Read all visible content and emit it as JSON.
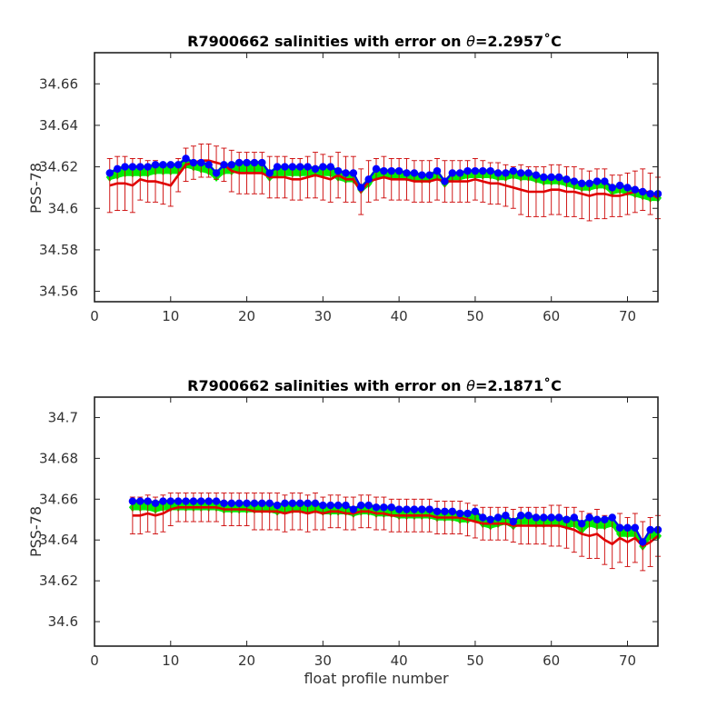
{
  "chart_data": [
    {
      "type": "line",
      "title": "R7900662 salinities with error on θ=2.2957˚C",
      "title_parts": {
        "prefix": "R7900662 salinities with error on ",
        "symbol": "θ",
        "suffix": "=2.2957˚C"
      },
      "xlabel": "",
      "ylabel": "PSS-78",
      "xlim": [
        0,
        74
      ],
      "ylim": [
        34.555,
        34.675
      ],
      "xticks": [
        0,
        10,
        20,
        30,
        40,
        50,
        60,
        70
      ],
      "xtick_labels": [
        "0",
        "10",
        "20",
        "30",
        "40",
        "50",
        "60",
        "70"
      ],
      "yticks": [
        34.56,
        34.58,
        34.6,
        34.62,
        34.64,
        34.66
      ],
      "ytick_labels": [
        "34.56",
        "34.58",
        "34.6",
        "34.62",
        "34.64",
        "34.66"
      ],
      "grid": false,
      "legend": "none",
      "colors": {
        "blue": "#0000ff",
        "red": "#e00000",
        "green": "#00ee00",
        "errorbar": "#cc0000"
      },
      "x": [
        2,
        3,
        4,
        5,
        6,
        7,
        8,
        9,
        10,
        11,
        12,
        13,
        14,
        15,
        16,
        17,
        18,
        19,
        20,
        21,
        22,
        23,
        24,
        25,
        26,
        27,
        28,
        29,
        30,
        31,
        32,
        33,
        34,
        35,
        36,
        37,
        38,
        39,
        40,
        41,
        42,
        43,
        44,
        45,
        46,
        47,
        48,
        49,
        50,
        51,
        52,
        53,
        54,
        55,
        56,
        57,
        58,
        59,
        60,
        61,
        62,
        63,
        64,
        65,
        66,
        67,
        68,
        69,
        70,
        71,
        72,
        73,
        74
      ],
      "series": [
        {
          "role": "float salinity (blue markers)",
          "values": [
            34.617,
            34.619,
            34.62,
            34.62,
            34.62,
            34.62,
            34.621,
            34.621,
            34.621,
            34.621,
            34.624,
            34.622,
            34.622,
            34.621,
            34.617,
            34.621,
            34.621,
            34.622,
            34.622,
            34.622,
            34.622,
            34.617,
            34.62,
            34.62,
            34.62,
            34.62,
            34.62,
            34.619,
            34.62,
            34.62,
            34.618,
            34.617,
            34.617,
            34.61,
            34.614,
            34.619,
            34.618,
            34.618,
            34.618,
            34.617,
            34.617,
            34.616,
            34.616,
            34.618,
            34.613,
            34.617,
            34.617,
            34.618,
            34.618,
            34.618,
            34.618,
            34.617,
            34.617,
            34.618,
            34.617,
            34.617,
            34.616,
            34.615,
            34.615,
            34.615,
            34.614,
            34.613,
            34.612,
            34.612,
            34.613,
            34.613,
            34.61,
            34.611,
            34.61,
            34.609,
            34.608,
            34.607,
            34.607
          ]
        },
        {
          "role": "mapped salinity (red line)",
          "values": [
            34.611,
            34.612,
            34.612,
            34.611,
            34.614,
            34.613,
            34.613,
            34.612,
            34.611,
            34.616,
            34.621,
            34.622,
            34.623,
            34.623,
            34.622,
            34.621,
            34.618,
            34.617,
            34.617,
            34.617,
            34.617,
            34.615,
            34.615,
            34.615,
            34.614,
            34.614,
            34.615,
            34.616,
            34.615,
            34.614,
            34.616,
            34.614,
            34.614,
            34.608,
            34.613,
            34.614,
            34.615,
            34.614,
            34.614,
            34.614,
            34.613,
            34.613,
            34.613,
            34.614,
            34.613,
            34.613,
            34.613,
            34.613,
            34.614,
            34.613,
            34.612,
            34.612,
            34.611,
            34.61,
            34.609,
            34.608,
            34.608,
            34.608,
            34.609,
            34.609,
            34.608,
            34.608,
            34.607,
            34.606,
            34.607,
            34.607,
            34.606,
            34.606,
            34.607,
            34.608,
            34.609,
            34.607,
            34.605
          ]
        },
        {
          "role": "error band (green)",
          "values": [
            34.615,
            34.616,
            34.617,
            34.617,
            34.617,
            34.617,
            34.618,
            34.618,
            34.618,
            34.618,
            34.621,
            34.62,
            34.619,
            34.618,
            34.615,
            34.618,
            34.618,
            34.619,
            34.619,
            34.619,
            34.619,
            34.615,
            34.617,
            34.617,
            34.617,
            34.617,
            34.617,
            34.617,
            34.617,
            34.617,
            34.615,
            34.614,
            34.614,
            34.609,
            34.612,
            34.616,
            34.616,
            34.616,
            34.616,
            34.615,
            34.615,
            34.614,
            34.614,
            34.616,
            34.612,
            34.615,
            34.615,
            34.616,
            34.616,
            34.616,
            34.616,
            34.615,
            34.615,
            34.616,
            34.615,
            34.615,
            34.614,
            34.613,
            34.613,
            34.613,
            34.612,
            34.611,
            34.61,
            34.61,
            34.611,
            34.611,
            34.608,
            34.609,
            34.608,
            34.607,
            34.606,
            34.605,
            34.605
          ]
        }
      ],
      "error_halfwidth": [
        0.013,
        0.013,
        0.013,
        0.013,
        0.01,
        0.01,
        0.01,
        0.01,
        0.01,
        0.008,
        0.008,
        0.008,
        0.008,
        0.008,
        0.008,
        0.008,
        0.01,
        0.01,
        0.01,
        0.01,
        0.01,
        0.01,
        0.01,
        0.01,
        0.01,
        0.01,
        0.01,
        0.011,
        0.011,
        0.011,
        0.011,
        0.011,
        0.011,
        0.011,
        0.01,
        0.01,
        0.01,
        0.01,
        0.01,
        0.01,
        0.01,
        0.01,
        0.01,
        0.01,
        0.01,
        0.01,
        0.01,
        0.01,
        0.01,
        0.01,
        0.01,
        0.01,
        0.01,
        0.01,
        0.012,
        0.012,
        0.012,
        0.012,
        0.012,
        0.012,
        0.012,
        0.012,
        0.012,
        0.012,
        0.012,
        0.012,
        0.01,
        0.01,
        0.01,
        0.01,
        0.01,
        0.01,
        0.01
      ]
    },
    {
      "type": "line",
      "title": "R7900662 salinities with error on θ=2.1871˚C",
      "title_parts": {
        "prefix": "R7900662 salinities with error on ",
        "symbol": "θ",
        "suffix": "=2.1871˚C"
      },
      "xlabel": "float profile number",
      "ylabel": "PSS-78",
      "xlim": [
        0,
        74
      ],
      "ylim": [
        34.588,
        34.71
      ],
      "xticks": [
        0,
        10,
        20,
        30,
        40,
        50,
        60,
        70
      ],
      "xtick_labels": [
        "0",
        "10",
        "20",
        "30",
        "40",
        "50",
        "60",
        "70"
      ],
      "yticks": [
        34.6,
        34.62,
        34.64,
        34.66,
        34.68,
        34.7
      ],
      "ytick_labels": [
        "34.6",
        "34.62",
        "34.64",
        "34.66",
        "34.68",
        "34.7"
      ],
      "grid": false,
      "legend": "none",
      "colors": {
        "blue": "#0000ff",
        "red": "#e00000",
        "green": "#00ee00",
        "errorbar": "#cc0000"
      },
      "x": [
        5,
        6,
        7,
        8,
        9,
        10,
        11,
        12,
        13,
        14,
        15,
        16,
        17,
        18,
        19,
        20,
        21,
        22,
        23,
        24,
        25,
        26,
        27,
        28,
        29,
        30,
        31,
        32,
        33,
        34,
        35,
        36,
        37,
        38,
        39,
        40,
        41,
        42,
        43,
        44,
        45,
        46,
        47,
        48,
        49,
        50,
        51,
        52,
        53,
        54,
        55,
        56,
        57,
        58,
        59,
        60,
        61,
        62,
        63,
        64,
        65,
        66,
        67,
        68,
        69,
        70,
        71,
        72,
        73,
        74
      ],
      "series": [
        {
          "role": "float salinity (blue markers)",
          "values": [
            34.659,
            34.659,
            34.659,
            34.658,
            34.659,
            34.659,
            34.659,
            34.659,
            34.659,
            34.659,
            34.659,
            34.659,
            34.658,
            34.658,
            34.658,
            34.658,
            34.658,
            34.658,
            34.658,
            34.657,
            34.658,
            34.658,
            34.658,
            34.658,
            34.658,
            34.657,
            34.657,
            34.657,
            34.657,
            34.655,
            34.657,
            34.657,
            34.656,
            34.656,
            34.656,
            34.655,
            34.655,
            34.655,
            34.655,
            34.655,
            34.654,
            34.654,
            34.654,
            34.653,
            34.653,
            34.654,
            34.651,
            34.65,
            34.651,
            34.652,
            34.649,
            34.652,
            34.652,
            34.651,
            34.651,
            34.651,
            34.651,
            34.65,
            34.651,
            34.648,
            34.651,
            34.65,
            34.65,
            34.651,
            34.646,
            34.646,
            34.646,
            34.639,
            34.645,
            34.645
          ]
        },
        {
          "role": "mapped salinity (red line)",
          "values": [
            34.652,
            34.652,
            34.653,
            34.652,
            34.653,
            34.655,
            34.656,
            34.656,
            34.656,
            34.656,
            34.656,
            34.656,
            34.655,
            34.655,
            34.655,
            34.655,
            34.654,
            34.654,
            34.654,
            34.654,
            34.653,
            34.654,
            34.654,
            34.653,
            34.654,
            34.653,
            34.654,
            34.654,
            34.653,
            34.653,
            34.654,
            34.654,
            34.653,
            34.653,
            34.652,
            34.652,
            34.652,
            34.652,
            34.652,
            34.652,
            34.651,
            34.651,
            34.651,
            34.651,
            34.65,
            34.649,
            34.648,
            34.648,
            34.648,
            34.648,
            34.647,
            34.647,
            34.647,
            34.647,
            34.647,
            34.647,
            34.647,
            34.646,
            34.645,
            34.643,
            34.642,
            34.643,
            34.64,
            34.638,
            34.641,
            34.639,
            34.641,
            34.637,
            34.639,
            34.642
          ]
        },
        {
          "role": "error band (green)",
          "values": [
            34.656,
            34.656,
            34.656,
            34.655,
            34.656,
            34.656,
            34.656,
            34.656,
            34.656,
            34.656,
            34.656,
            34.656,
            34.655,
            34.655,
            34.655,
            34.655,
            34.655,
            34.655,
            34.655,
            34.654,
            34.655,
            34.655,
            34.655,
            34.655,
            34.655,
            34.654,
            34.654,
            34.654,
            34.654,
            34.653,
            34.654,
            34.654,
            34.653,
            34.653,
            34.653,
            34.652,
            34.652,
            34.652,
            34.652,
            34.652,
            34.651,
            34.651,
            34.651,
            34.65,
            34.65,
            34.651,
            34.648,
            34.647,
            34.648,
            34.649,
            34.647,
            34.649,
            34.649,
            34.648,
            34.648,
            34.648,
            34.648,
            34.647,
            34.648,
            34.645,
            34.648,
            34.647,
            34.647,
            34.648,
            34.643,
            34.643,
            34.643,
            34.637,
            34.642,
            34.642
          ]
        }
      ],
      "error_halfwidth": [
        0.009,
        0.009,
        0.009,
        0.009,
        0.009,
        0.008,
        0.007,
        0.007,
        0.007,
        0.007,
        0.007,
        0.007,
        0.008,
        0.008,
        0.008,
        0.008,
        0.009,
        0.009,
        0.009,
        0.009,
        0.009,
        0.009,
        0.009,
        0.009,
        0.009,
        0.008,
        0.008,
        0.008,
        0.008,
        0.008,
        0.008,
        0.008,
        0.008,
        0.008,
        0.008,
        0.008,
        0.008,
        0.008,
        0.008,
        0.008,
        0.008,
        0.008,
        0.008,
        0.008,
        0.008,
        0.008,
        0.008,
        0.008,
        0.008,
        0.008,
        0.008,
        0.009,
        0.009,
        0.009,
        0.009,
        0.01,
        0.01,
        0.01,
        0.011,
        0.011,
        0.011,
        0.012,
        0.012,
        0.012,
        0.012,
        0.012,
        0.012,
        0.012,
        0.012,
        0.01
      ]
    }
  ]
}
